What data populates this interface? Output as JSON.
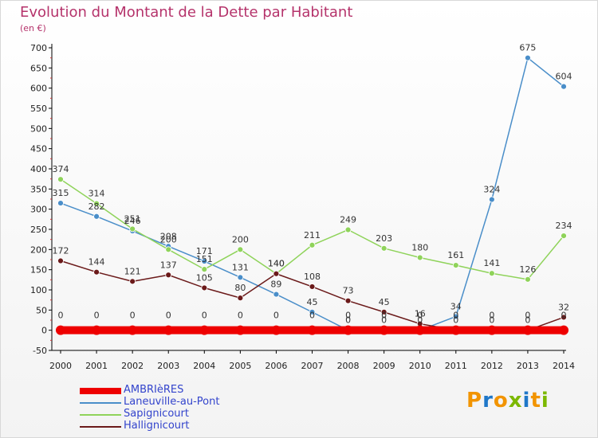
{
  "title": "Evolution du Montant de la Dette par Habitant",
  "unit": "(en €)",
  "brand": {
    "text": "Proxiti",
    "colors": [
      "#f29400",
      "#1f77c8",
      "#f29400",
      "#7cb800",
      "#1f77c8",
      "#f29400",
      "#7cb800"
    ]
  },
  "chart_data": {
    "type": "line",
    "title": "Evolution du Montant de la Dette par Habitant",
    "ylabel": "(en €)",
    "xlabel": "",
    "x": [
      "2000",
      "2001",
      "2002",
      "2003",
      "2004",
      "2005",
      "2006",
      "2007",
      "2008",
      "2009",
      "2010",
      "2011",
      "2012",
      "2013",
      "2014"
    ],
    "ylim": [
      -50,
      700
    ],
    "yticks": [
      "-50",
      "0",
      "50",
      "100",
      "150",
      "200",
      "250",
      "300",
      "350",
      "400",
      "450",
      "500",
      "550",
      "600",
      "650",
      "700"
    ],
    "grid": false,
    "legend_position": "bottom-left",
    "series": [
      {
        "name": "AMBRIèRES",
        "color": "#ee0000",
        "width": 10,
        "values": [
          0,
          0,
          0,
          0,
          0,
          0,
          0,
          0,
          0,
          0,
          0,
          0,
          0,
          0,
          0
        ],
        "labels": [
          "0",
          "0",
          "0",
          "0",
          "0",
          "0",
          "0",
          "0",
          "0",
          "0",
          "0",
          "0",
          "0",
          "0",
          "0"
        ]
      },
      {
        "name": "Laneuville-au-Pont",
        "color": "#4a8ec9",
        "width": 1.5,
        "values": [
          315,
          282,
          246,
          208,
          171,
          131,
          89,
          45,
          0,
          0,
          0,
          34,
          324,
          675,
          604
        ],
        "labels": [
          "315",
          "282",
          "246",
          "208",
          "171",
          "131",
          "89",
          "45",
          "0",
          "0",
          "0",
          "34",
          "324",
          "675",
          "604"
        ]
      },
      {
        "name": "Sapignicourt",
        "color": "#8fd35a",
        "width": 1.5,
        "values": [
          374,
          314,
          251,
          200,
          151,
          200,
          140,
          211,
          249,
          203,
          180,
          161,
          141,
          126,
          234
        ],
        "labels": [
          "374",
          "314",
          "251",
          "200",
          "151",
          "200",
          "140",
          "211",
          "249",
          "203",
          "180",
          "161",
          "141",
          "126",
          "234"
        ]
      },
      {
        "name": "Hallignicourt",
        "color": "#6b1a1a",
        "width": 1.5,
        "values": [
          172,
          144,
          121,
          137,
          105,
          80,
          140,
          108,
          73,
          45,
          16,
          0,
          0,
          0,
          32
        ],
        "labels": [
          "172",
          "144",
          "121",
          "137",
          "105",
          "80",
          "140",
          "108",
          "73",
          "45",
          "16",
          "0",
          "0",
          "0",
          "32"
        ]
      }
    ]
  }
}
